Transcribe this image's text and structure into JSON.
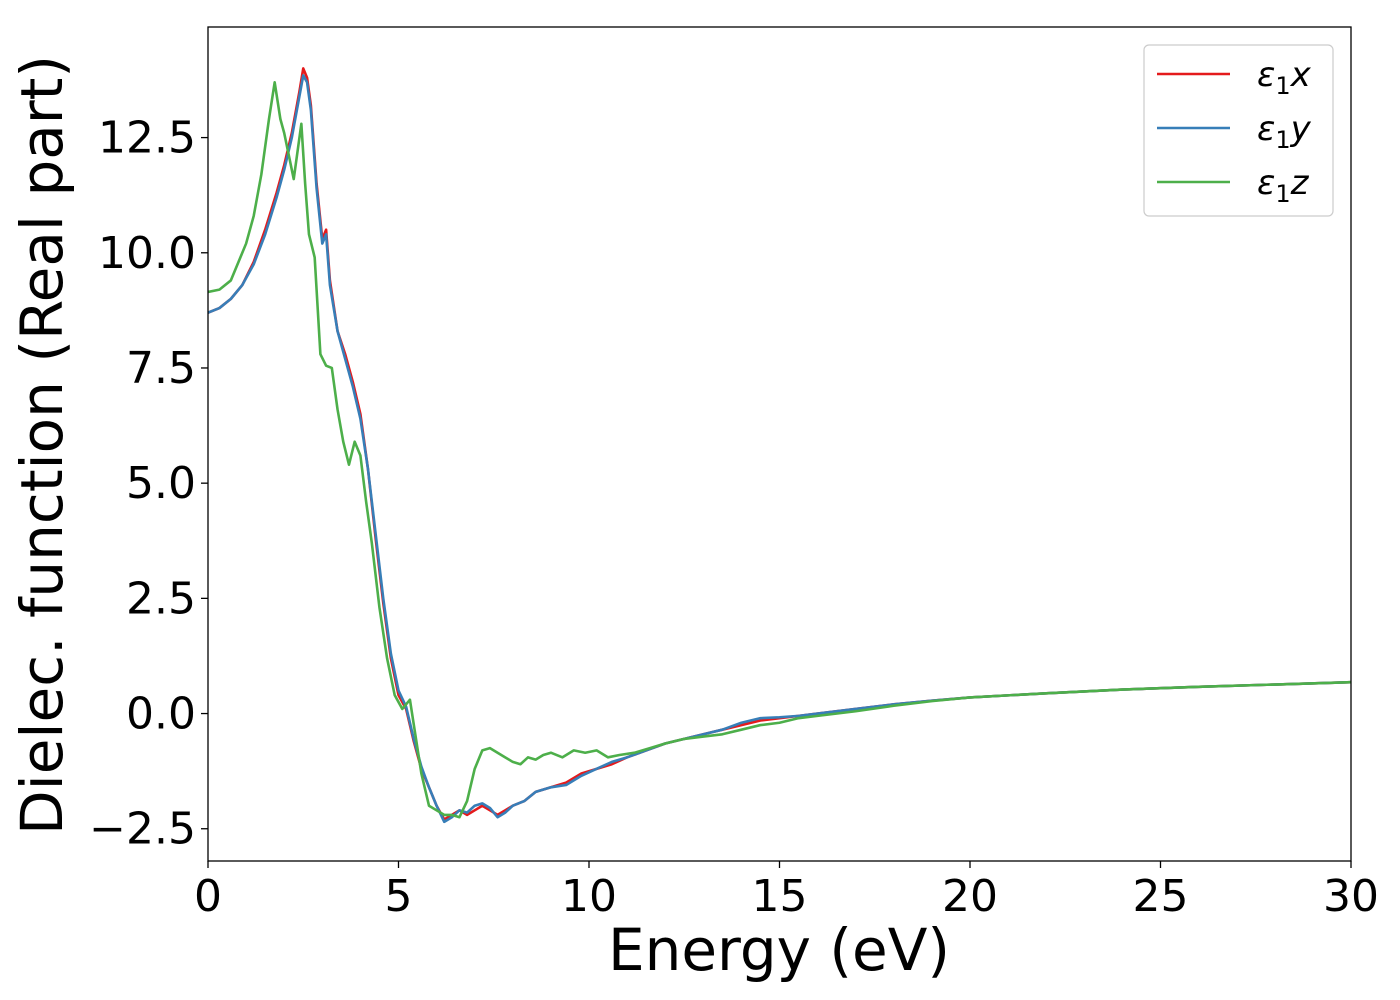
{
  "chart_data": {
    "type": "line",
    "xlabel": "Energy (eV)",
    "ylabel": "Dielec. function (Real part)",
    "xlim": [
      0,
      30
    ],
    "ylim": [
      -3.2,
      14.9
    ],
    "xticks": [
      "0",
      "5",
      "10",
      "15",
      "20",
      "25",
      "30"
    ],
    "yticks": [
      "−2.5",
      "0.0",
      "2.5",
      "5.0",
      "7.5",
      "10.0",
      "12.5"
    ],
    "legend_position": "top-right",
    "series": [
      {
        "name": "ε1x",
        "legend_base": "ε",
        "legend_sub": "1",
        "legend_var": "x",
        "color": "#e41a1c",
        "x": [
          0,
          0.3,
          0.6,
          0.9,
          1.2,
          1.5,
          1.8,
          2.0,
          2.2,
          2.4,
          2.5,
          2.6,
          2.7,
          2.85,
          3.0,
          3.1,
          3.2,
          3.4,
          3.6,
          3.8,
          4.0,
          4.2,
          4.4,
          4.6,
          4.8,
          5.0,
          5.2,
          5.4,
          5.6,
          5.8,
          6.0,
          6.2,
          6.4,
          6.6,
          6.8,
          7.0,
          7.2,
          7.4,
          7.6,
          7.8,
          8.0,
          8.3,
          8.6,
          9.0,
          9.4,
          9.8,
          10.2,
          10.6,
          11.0,
          11.5,
          12.0,
          12.5,
          13.0,
          13.5,
          14.0,
          14.5,
          15.0,
          15.5,
          16.0,
          17.0,
          18.0,
          19.0,
          20.0,
          22.0,
          24.0,
          26.0,
          28.0,
          30.0
        ],
        "y": [
          8.7,
          8.8,
          9.0,
          9.3,
          9.8,
          10.5,
          11.3,
          11.9,
          12.6,
          13.5,
          14.0,
          13.8,
          13.2,
          11.5,
          10.3,
          10.5,
          9.4,
          8.3,
          7.8,
          7.2,
          6.5,
          5.3,
          3.8,
          2.4,
          1.2,
          0.4,
          0.1,
          -0.6,
          -1.2,
          -1.6,
          -2.0,
          -2.3,
          -2.2,
          -2.1,
          -2.2,
          -2.1,
          -2.0,
          -2.1,
          -2.2,
          -2.1,
          -2.0,
          -1.9,
          -1.7,
          -1.6,
          -1.5,
          -1.3,
          -1.2,
          -1.1,
          -0.95,
          -0.8,
          -0.65,
          -0.55,
          -0.45,
          -0.35,
          -0.25,
          -0.15,
          -0.1,
          -0.05,
          0.0,
          0.1,
          0.2,
          0.28,
          0.35,
          0.44,
          0.52,
          0.58,
          0.63,
          0.68
        ]
      },
      {
        "name": "ε1y",
        "legend_base": "ε",
        "legend_sub": "1",
        "legend_var": "y",
        "color": "#377eb8",
        "x": [
          0,
          0.3,
          0.6,
          0.9,
          1.2,
          1.5,
          1.8,
          2.0,
          2.2,
          2.4,
          2.5,
          2.6,
          2.7,
          2.85,
          3.0,
          3.1,
          3.2,
          3.4,
          3.6,
          3.8,
          4.0,
          4.2,
          4.4,
          4.6,
          4.8,
          5.0,
          5.2,
          5.4,
          5.6,
          5.8,
          6.0,
          6.2,
          6.4,
          6.6,
          6.8,
          7.0,
          7.2,
          7.4,
          7.6,
          7.8,
          8.0,
          8.3,
          8.6,
          9.0,
          9.4,
          9.8,
          10.2,
          10.6,
          11.0,
          11.5,
          12.0,
          12.5,
          13.0,
          13.5,
          14.0,
          14.5,
          15.0,
          15.5,
          16.0,
          17.0,
          18.0,
          19.0,
          20.0,
          22.0,
          24.0,
          26.0,
          28.0,
          30.0
        ],
        "y": [
          8.7,
          8.8,
          9.0,
          9.3,
          9.75,
          10.4,
          11.2,
          11.8,
          12.5,
          13.4,
          13.85,
          13.7,
          13.1,
          11.4,
          10.2,
          10.4,
          9.3,
          8.3,
          7.7,
          7.1,
          6.4,
          5.3,
          3.9,
          2.5,
          1.3,
          0.5,
          0.15,
          -0.55,
          -1.15,
          -1.6,
          -2.0,
          -2.35,
          -2.25,
          -2.1,
          -2.15,
          -2.0,
          -1.95,
          -2.05,
          -2.25,
          -2.15,
          -2.0,
          -1.9,
          -1.7,
          -1.6,
          -1.55,
          -1.35,
          -1.2,
          -1.05,
          -0.95,
          -0.8,
          -0.65,
          -0.55,
          -0.45,
          -0.35,
          -0.2,
          -0.1,
          -0.08,
          -0.05,
          0.0,
          0.1,
          0.2,
          0.28,
          0.35,
          0.44,
          0.52,
          0.58,
          0.63,
          0.68
        ]
      },
      {
        "name": "ε1z",
        "legend_base": "ε",
        "legend_sub": "1",
        "legend_var": "z",
        "color": "#4daf4a",
        "x": [
          0,
          0.3,
          0.6,
          0.8,
          1.0,
          1.2,
          1.4,
          1.6,
          1.75,
          1.9,
          2.0,
          2.15,
          2.25,
          2.35,
          2.45,
          2.55,
          2.65,
          2.8,
          2.95,
          3.1,
          3.25,
          3.4,
          3.55,
          3.7,
          3.85,
          4.0,
          4.15,
          4.3,
          4.5,
          4.7,
          4.9,
          5.1,
          5.3,
          5.45,
          5.6,
          5.8,
          6.0,
          6.2,
          6.4,
          6.6,
          6.8,
          7.0,
          7.2,
          7.4,
          7.6,
          7.8,
          8.0,
          8.2,
          8.4,
          8.6,
          8.8,
          9.0,
          9.3,
          9.6,
          9.9,
          10.2,
          10.5,
          10.8,
          11.2,
          11.6,
          12.0,
          12.5,
          13.0,
          13.5,
          14.0,
          14.5,
          15.0,
          15.5,
          16.0,
          17.0,
          18.0,
          19.0,
          20.0,
          22.0,
          24.0,
          26.0,
          28.0,
          30.0
        ],
        "y": [
          9.15,
          9.2,
          9.4,
          9.8,
          10.2,
          10.8,
          11.7,
          12.9,
          13.7,
          12.9,
          12.6,
          12.0,
          11.6,
          12.2,
          12.8,
          11.5,
          10.4,
          9.9,
          7.8,
          7.55,
          7.5,
          6.6,
          5.9,
          5.4,
          5.9,
          5.6,
          4.6,
          3.7,
          2.3,
          1.2,
          0.4,
          0.1,
          0.3,
          -0.5,
          -1.3,
          -2.0,
          -2.1,
          -2.2,
          -2.2,
          -2.25,
          -1.9,
          -1.2,
          -0.8,
          -0.75,
          -0.85,
          -0.95,
          -1.05,
          -1.1,
          -0.95,
          -1.0,
          -0.9,
          -0.85,
          -0.95,
          -0.8,
          -0.85,
          -0.8,
          -0.95,
          -0.9,
          -0.85,
          -0.75,
          -0.65,
          -0.55,
          -0.5,
          -0.45,
          -0.35,
          -0.25,
          -0.2,
          -0.1,
          -0.05,
          0.05,
          0.17,
          0.27,
          0.35,
          0.44,
          0.52,
          0.58,
          0.63,
          0.68
        ]
      }
    ]
  }
}
